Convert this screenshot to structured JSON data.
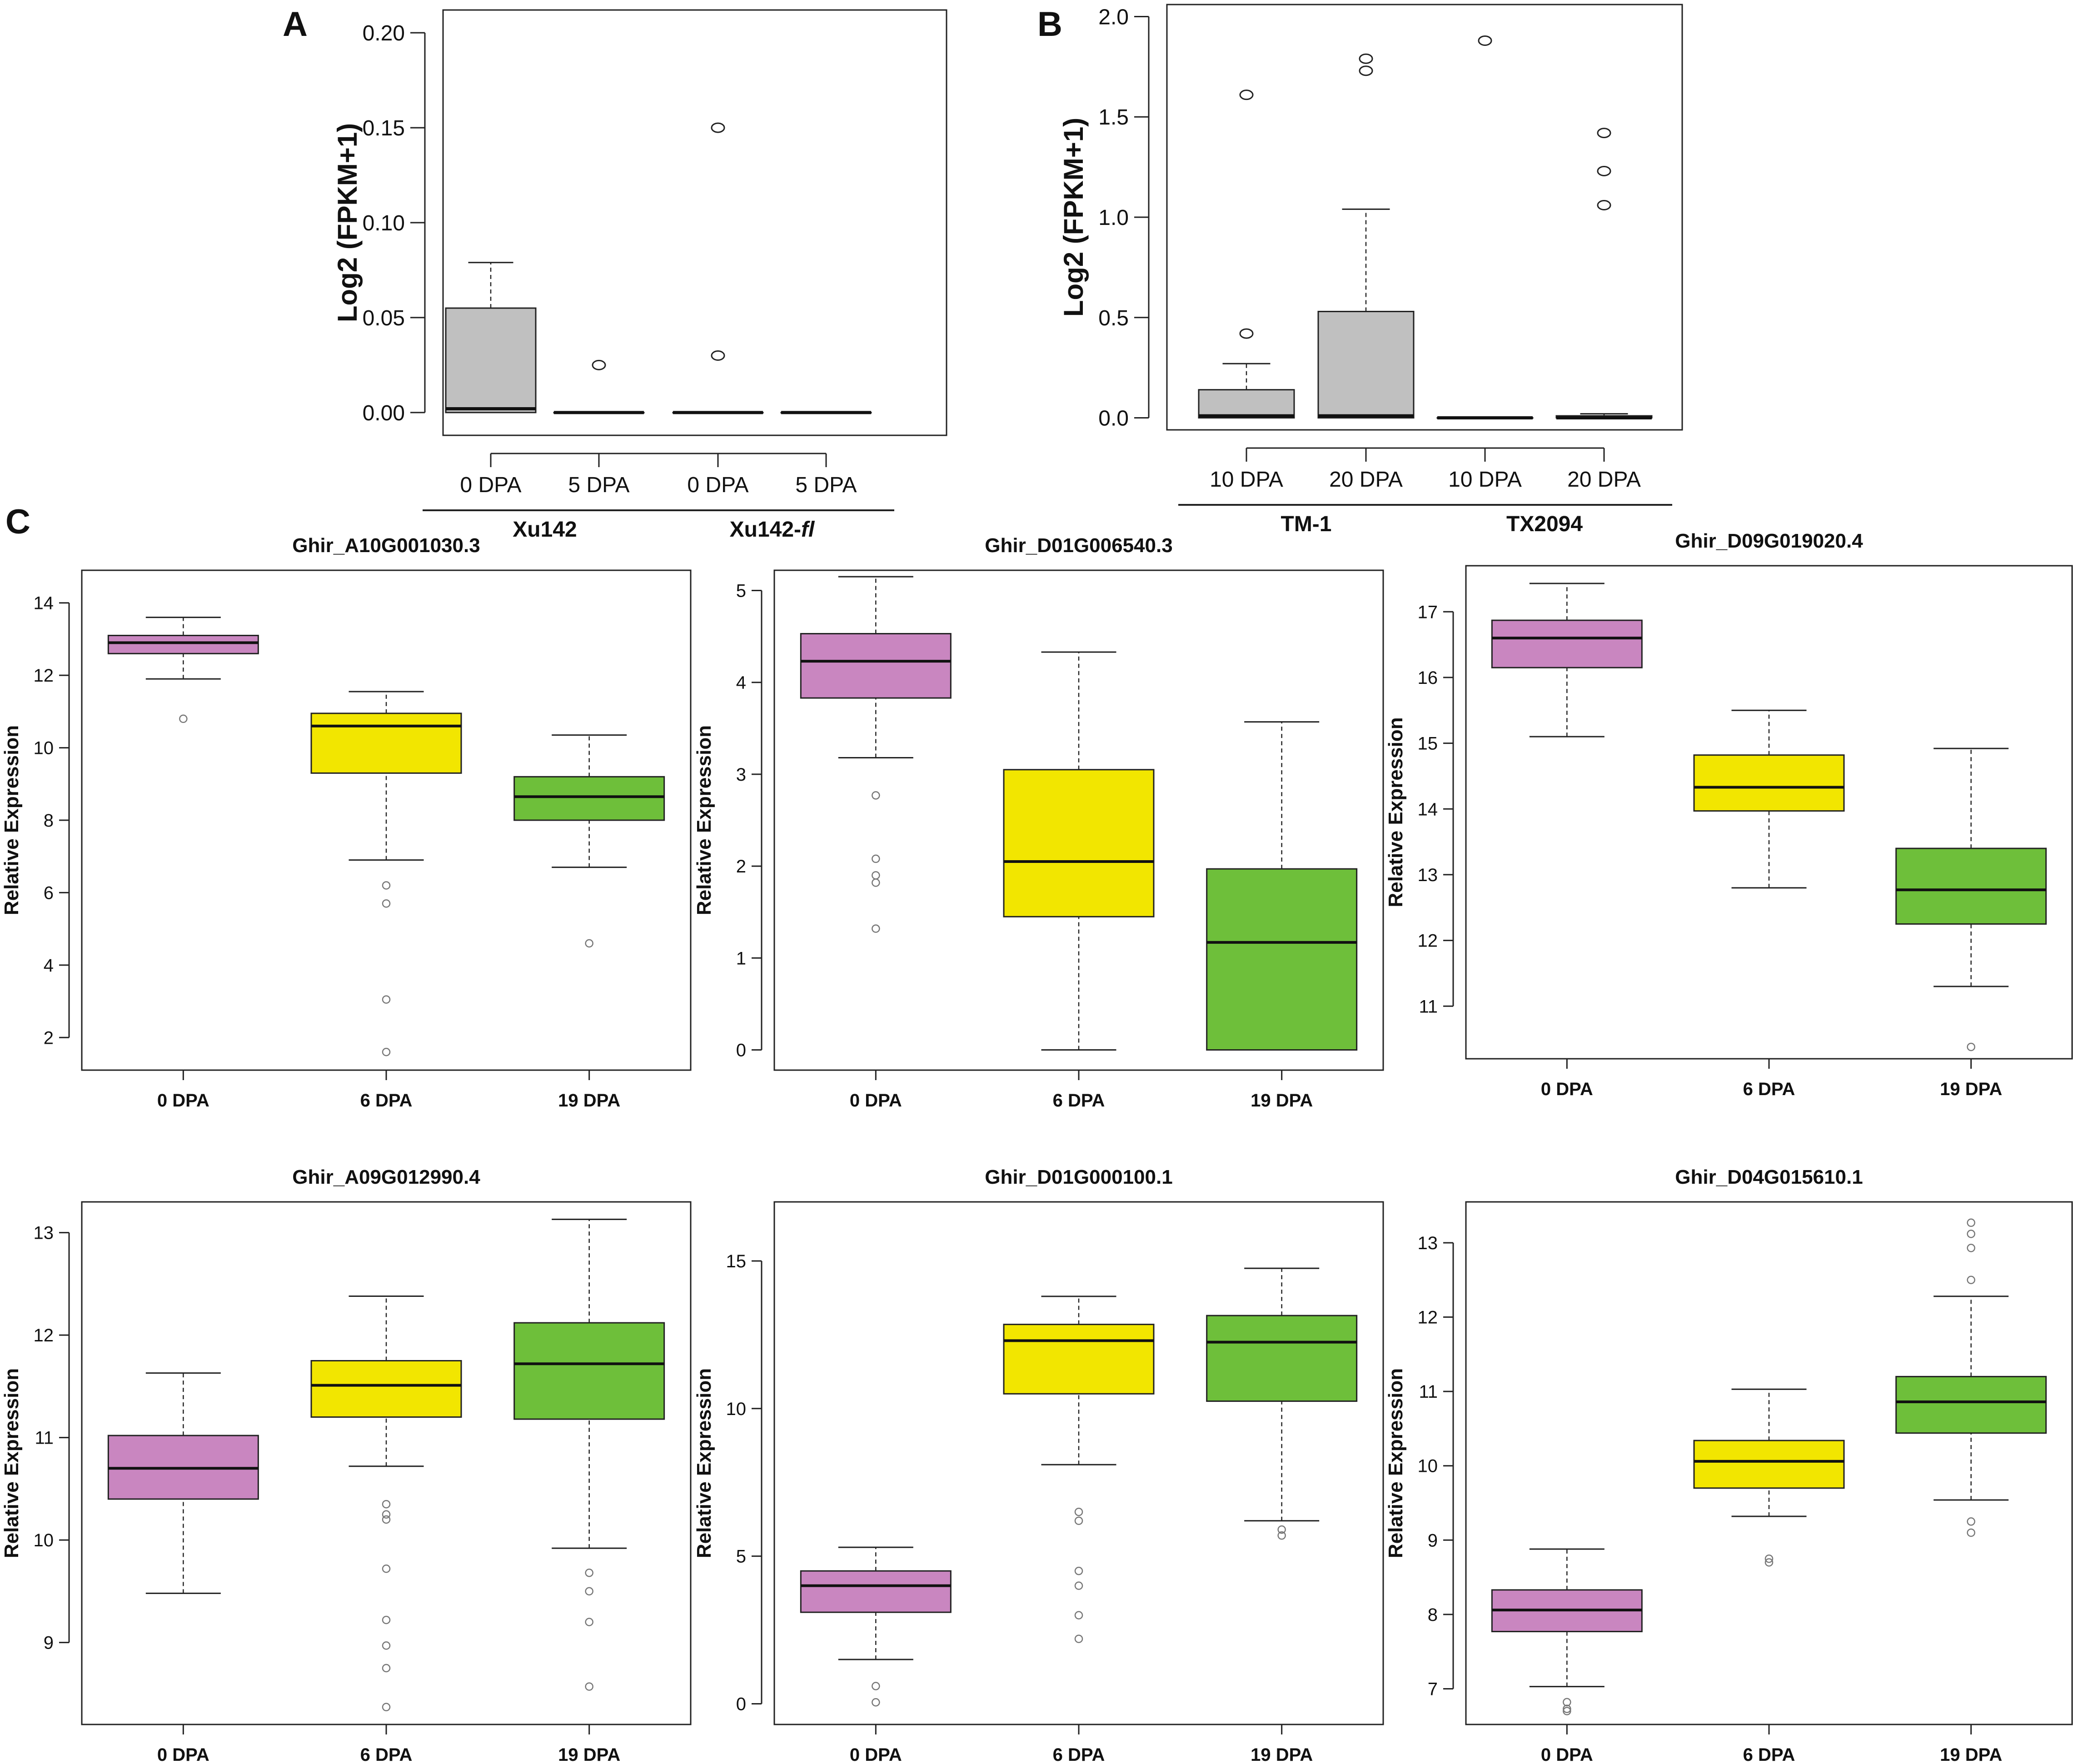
{
  "figure": {
    "panel_letters": [
      "A",
      "B",
      "C"
    ]
  },
  "chart_data": [
    {
      "panel": "A",
      "type": "box",
      "ylabel": "Log2 (FPKM+1)",
      "ylim": [
        -0.012,
        0.212
      ],
      "yticks": [
        0.0,
        0.05,
        0.1,
        0.15,
        0.2
      ],
      "ytick_labels": [
        "0.00",
        "0.05",
        "0.10",
        "0.15",
        "0.20"
      ],
      "box_color": "#c0c0c0",
      "categories": [
        "0 DPA",
        "5 DPA",
        "0 DPA",
        "5 DPA"
      ],
      "groups": [
        {
          "name": "Xu142",
          "italic_suffix": "",
          "span": [
            0,
            1
          ]
        },
        {
          "name": "Xu142-",
          "italic_suffix": "fl",
          "span": [
            2,
            3
          ]
        }
      ],
      "boxes": [
        {
          "min": 0.0,
          "q1": 0.0,
          "median": 0.002,
          "q3": 0.055,
          "max": 0.079,
          "outliers": []
        },
        {
          "min": 0.0,
          "q1": 0.0,
          "median": 0.0,
          "q3": 0.0,
          "max": 0.0,
          "outliers": [
            0.025
          ]
        },
        {
          "min": 0.0,
          "q1": 0.0,
          "median": 0.0,
          "q3": 0.0,
          "max": 0.0,
          "outliers": [
            0.03,
            0.15
          ]
        },
        {
          "min": 0.0,
          "q1": 0.0,
          "median": 0.0,
          "q3": 0.0,
          "max": 0.0,
          "outliers": []
        }
      ]
    },
    {
      "panel": "B",
      "type": "box",
      "ylabel": "Log2 (FPKM+1)",
      "ylim": [
        -0.06,
        2.06
      ],
      "yticks": [
        0.0,
        0.5,
        1.0,
        1.5,
        2.0
      ],
      "ytick_labels": [
        "0.0",
        "0.5",
        "1.0",
        "1.5",
        "2.0"
      ],
      "box_color": "#c0c0c0",
      "categories": [
        "10 DPA",
        "20 DPA",
        "10 DPA",
        "20 DPA"
      ],
      "groups": [
        {
          "name": "TM-1",
          "italic_suffix": "",
          "span": [
            0,
            1
          ]
        },
        {
          "name": "TX2094",
          "italic_suffix": "",
          "span": [
            2,
            3
          ]
        }
      ],
      "boxes": [
        {
          "min": 0.0,
          "q1": 0.0,
          "median": 0.01,
          "q3": 0.14,
          "max": 0.27,
          "outliers": [
            0.42,
            1.61
          ]
        },
        {
          "min": 0.0,
          "q1": 0.0,
          "median": 0.01,
          "q3": 0.53,
          "max": 1.04,
          "outliers": [
            1.73,
            1.79
          ]
        },
        {
          "min": 0.0,
          "q1": 0.0,
          "median": 0.0,
          "q3": 0.0,
          "max": 0.0,
          "outliers": [
            1.88
          ]
        },
        {
          "min": 0.0,
          "q1": 0.0,
          "median": 0.0,
          "q3": 0.01,
          "max": 0.02,
          "outliers": [
            1.06,
            1.23,
            1.42
          ]
        }
      ]
    },
    {
      "panel": "C1",
      "type": "box",
      "title": "Ghir_A10G001030.3",
      "ylabel": "Relative Expression",
      "ylim": [
        1.1,
        14.9
      ],
      "yticks": [
        2,
        4,
        6,
        8,
        10,
        12,
        14
      ],
      "ytick_labels": [
        "2",
        "4",
        "6",
        "8",
        "10",
        "12",
        "14"
      ],
      "categories": [
        "0 DPA",
        "6 DPA",
        "19 DPA"
      ],
      "box_colors": [
        "#c986c0",
        "#f2e600",
        "#6ebf3a"
      ],
      "boxes": [
        {
          "min": 11.9,
          "q1": 12.6,
          "median": 12.9,
          "q3": 13.1,
          "max": 13.6,
          "outliers": [
            10.8
          ]
        },
        {
          "min": 6.9,
          "q1": 9.3,
          "median": 10.6,
          "q3": 10.95,
          "max": 11.55,
          "outliers": [
            6.2,
            5.7,
            3.05,
            1.6
          ]
        },
        {
          "min": 6.7,
          "q1": 8.0,
          "median": 8.65,
          "q3": 9.2,
          "max": 10.35,
          "outliers": [
            4.6
          ]
        }
      ]
    },
    {
      "panel": "C2",
      "type": "box",
      "title": "Ghir_D01G006540.3",
      "ylabel": "Relative Expression",
      "ylim": [
        -0.22,
        5.22
      ],
      "yticks": [
        0,
        1,
        2,
        3,
        4,
        5
      ],
      "ytick_labels": [
        "0",
        "1",
        "2",
        "3",
        "4",
        "5"
      ],
      "categories": [
        "0 DPA",
        "6 DPA",
        "19 DPA"
      ],
      "box_colors": [
        "#c986c0",
        "#f2e600",
        "#6ebf3a"
      ],
      "boxes": [
        {
          "min": 3.18,
          "q1": 3.83,
          "median": 4.23,
          "q3": 4.53,
          "max": 5.15,
          "outliers": [
            2.77,
            2.08,
            1.9,
            1.82,
            1.32
          ]
        },
        {
          "min": 0.0,
          "q1": 1.45,
          "median": 2.05,
          "q3": 3.05,
          "max": 4.33,
          "outliers": []
        },
        {
          "min": 0.0,
          "q1": 0.0,
          "median": 1.17,
          "q3": 1.97,
          "max": 3.57,
          "outliers": []
        }
      ]
    },
    {
      "panel": "C3",
      "type": "box",
      "title": "Ghir_D09G019020.4",
      "ylabel": "Relative Expression",
      "ylim": [
        10.2,
        17.7
      ],
      "yticks": [
        11,
        12,
        13,
        14,
        15,
        16,
        17
      ],
      "ytick_labels": [
        "11",
        "12",
        "13",
        "14",
        "15",
        "16",
        "17"
      ],
      "categories": [
        "0 DPA",
        "6 DPA",
        "19 DPA"
      ],
      "box_colors": [
        "#c986c0",
        "#f2e600",
        "#6ebf3a"
      ],
      "boxes": [
        {
          "min": 15.1,
          "q1": 16.15,
          "median": 16.6,
          "q3": 16.87,
          "max": 17.43,
          "outliers": []
        },
        {
          "min": 12.8,
          "q1": 13.97,
          "median": 14.33,
          "q3": 14.82,
          "max": 15.5,
          "outliers": []
        },
        {
          "min": 11.3,
          "q1": 12.25,
          "median": 12.77,
          "q3": 13.4,
          "max": 14.92,
          "outliers": [
            10.38
          ]
        }
      ]
    },
    {
      "panel": "C4",
      "type": "box",
      "title": "Ghir_A09G012990.4",
      "ylabel": "Relative Expression",
      "ylim": [
        8.2,
        13.3
      ],
      "yticks": [
        9,
        10,
        11,
        12,
        13
      ],
      "ytick_labels": [
        "9",
        "10",
        "11",
        "12",
        "13"
      ],
      "categories": [
        "0 DPA",
        "6 DPA",
        "19 DPA"
      ],
      "box_colors": [
        "#c986c0",
        "#f2e600",
        "#6ebf3a"
      ],
      "boxes": [
        {
          "min": 9.48,
          "q1": 10.4,
          "median": 10.7,
          "q3": 11.02,
          "max": 11.63,
          "outliers": []
        },
        {
          "min": 10.72,
          "q1": 11.2,
          "median": 11.51,
          "q3": 11.75,
          "max": 12.38,
          "outliers": [
            10.35,
            10.25,
            10.2,
            9.72,
            9.22,
            8.97,
            8.75,
            8.37
          ]
        },
        {
          "min": 9.92,
          "q1": 11.18,
          "median": 11.72,
          "q3": 12.12,
          "max": 13.13,
          "outliers": [
            9.68,
            9.5,
            9.2,
            8.57
          ]
        }
      ]
    },
    {
      "panel": "C5",
      "type": "box",
      "title": "Ghir_D01G000100.1",
      "ylabel": "Relative Expression",
      "ylim": [
        -0.7,
        17.0
      ],
      "yticks": [
        0,
        5,
        10,
        15
      ],
      "ytick_labels": [
        "0",
        "5",
        "10",
        "15"
      ],
      "categories": [
        "0 DPA",
        "6 DPA",
        "19 DPA"
      ],
      "box_colors": [
        "#c986c0",
        "#f2e600",
        "#6ebf3a"
      ],
      "boxes": [
        {
          "min": 1.5,
          "q1": 3.1,
          "median": 4.0,
          "q3": 4.5,
          "max": 5.3,
          "outliers": [
            0.6,
            0.05
          ]
        },
        {
          "min": 8.1,
          "q1": 10.5,
          "median": 12.3,
          "q3": 12.85,
          "max": 13.8,
          "outliers": [
            6.5,
            6.2,
            4.5,
            4.0,
            3.0,
            2.2
          ]
        },
        {
          "min": 6.2,
          "q1": 10.25,
          "median": 12.25,
          "q3": 13.15,
          "max": 14.75,
          "outliers": [
            5.9,
            5.7
          ]
        }
      ]
    },
    {
      "panel": "C6",
      "type": "box",
      "title": "Ghir_D04G015610.1",
      "ylabel": "Relative Expression",
      "ylim": [
        6.52,
        13.55
      ],
      "yticks": [
        7,
        8,
        9,
        10,
        11,
        12,
        13
      ],
      "ytick_labels": [
        "7",
        "8",
        "9",
        "10",
        "11",
        "12",
        "13"
      ],
      "categories": [
        "0 DPA",
        "6 DPA",
        "19 DPA"
      ],
      "box_colors": [
        "#c986c0",
        "#f2e600",
        "#6ebf3a"
      ],
      "boxes": [
        {
          "min": 7.03,
          "q1": 7.77,
          "median": 8.06,
          "q3": 8.33,
          "max": 8.88,
          "outliers": [
            6.82,
            6.73,
            6.7
          ]
        },
        {
          "min": 9.32,
          "q1": 9.7,
          "median": 10.06,
          "q3": 10.34,
          "max": 11.03,
          "outliers": [
            8.75,
            8.7
          ]
        },
        {
          "min": 9.54,
          "q1": 10.44,
          "median": 10.86,
          "q3": 11.2,
          "max": 12.28,
          "outliers": [
            13.27,
            13.12,
            12.93,
            12.5,
            9.25,
            9.1
          ]
        }
      ]
    }
  ]
}
